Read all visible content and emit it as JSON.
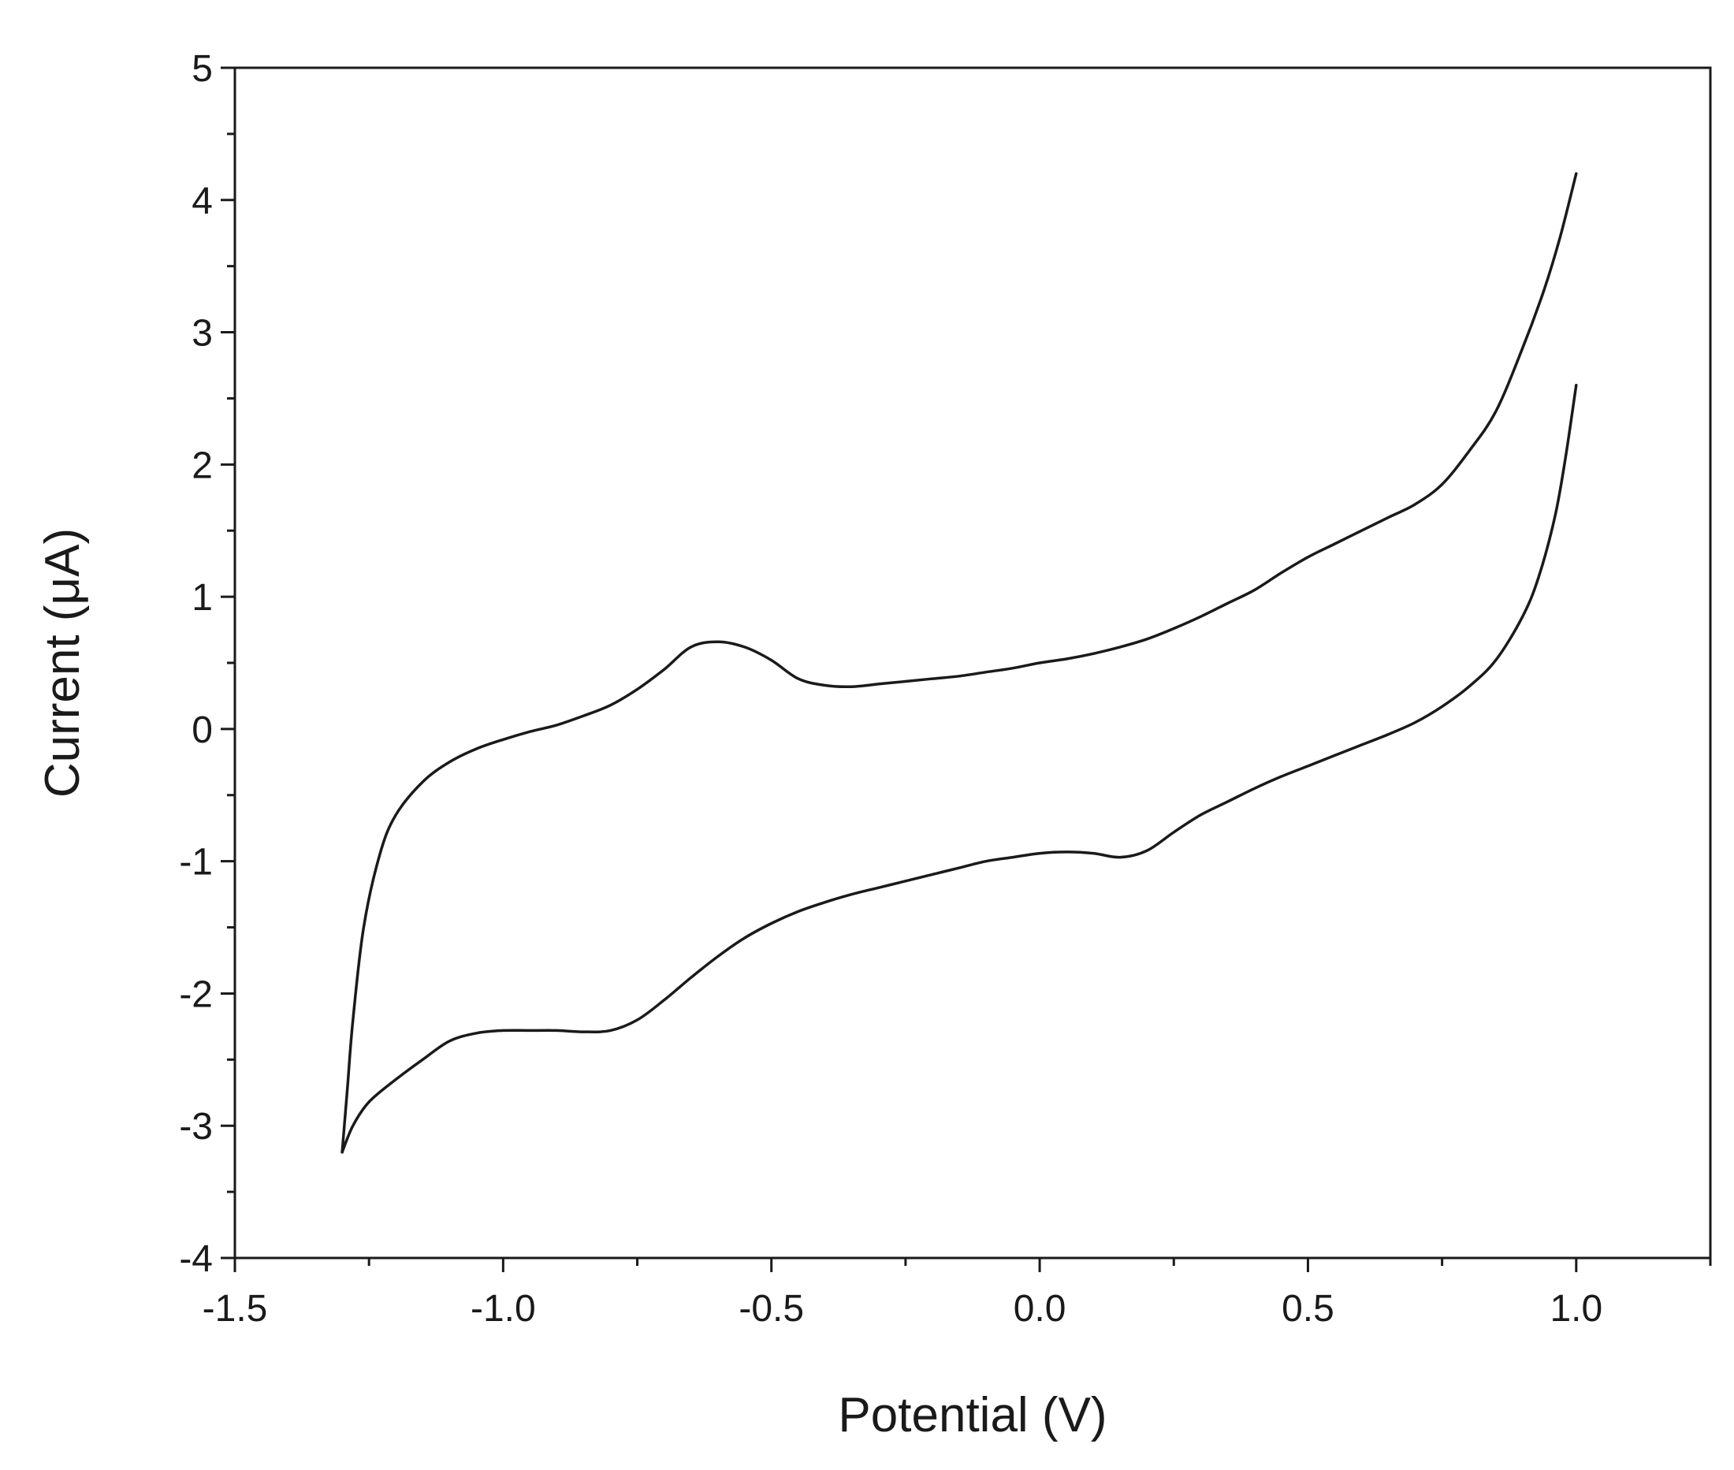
{
  "chart_data": {
    "type": "line",
    "title": "",
    "xlabel": "Potential (V)",
    "ylabel": "Current (μA)",
    "xlim": [
      -1.5,
      1.25
    ],
    "ylim": [
      -4,
      5
    ],
    "xticks": [
      -1.5,
      -1.0,
      -0.5,
      0.0,
      0.5,
      1.0
    ],
    "xtick_labels": [
      "-1.5",
      "-1.0",
      "-0.5",
      "0.0",
      "0.5",
      "1.0"
    ],
    "yticks": [
      -4,
      -3,
      -2,
      -1,
      0,
      1,
      2,
      3,
      4,
      5
    ],
    "ytick_labels": [
      "-4",
      "-3",
      "-2",
      "-1",
      "0",
      "1",
      "2",
      "3",
      "4",
      "5"
    ],
    "grid": false,
    "legend": false,
    "line_color": "#1a1a1a",
    "series": [
      {
        "x": [
          1.0,
          0.97,
          0.94,
          0.9,
          0.85,
          0.8,
          0.75,
          0.7,
          0.65,
          0.6,
          0.55,
          0.5,
          0.45,
          0.4,
          0.35,
          0.3,
          0.25,
          0.2,
          0.15,
          0.1,
          0.05,
          0.0,
          -0.05,
          -0.1,
          -0.15,
          -0.2,
          -0.25,
          -0.3,
          -0.35,
          -0.4,
          -0.45,
          -0.5,
          -0.55,
          -0.6,
          -0.65,
          -0.7,
          -0.75,
          -0.8,
          -0.85,
          -0.9,
          -0.95,
          -1.0,
          -1.05,
          -1.1,
          -1.15,
          -1.2,
          -1.23,
          -1.26,
          -1.28,
          -1.29,
          -1.3
        ],
        "y": [
          4.2,
          3.72,
          3.32,
          2.88,
          2.4,
          2.1,
          1.85,
          1.7,
          1.6,
          1.5,
          1.4,
          1.3,
          1.18,
          1.05,
          0.95,
          0.85,
          0.76,
          0.68,
          0.62,
          0.57,
          0.53,
          0.5,
          0.46,
          0.43,
          0.4,
          0.38,
          0.36,
          0.34,
          0.32,
          0.33,
          0.38,
          0.52,
          0.62,
          0.66,
          0.62,
          0.45,
          0.3,
          0.18,
          0.1,
          0.03,
          -0.02,
          -0.08,
          -0.15,
          -0.25,
          -0.4,
          -0.65,
          -0.95,
          -1.5,
          -2.2,
          -2.7,
          -3.2
        ]
      },
      {
        "x": [
          -1.3,
          -1.28,
          -1.25,
          -1.2,
          -1.15,
          -1.1,
          -1.05,
          -1.0,
          -0.95,
          -0.9,
          -0.85,
          -0.8,
          -0.75,
          -0.7,
          -0.65,
          -0.6,
          -0.55,
          -0.5,
          -0.45,
          -0.4,
          -0.35,
          -0.3,
          -0.25,
          -0.2,
          -0.15,
          -0.1,
          -0.05,
          0.0,
          0.05,
          0.1,
          0.15,
          0.2,
          0.25,
          0.3,
          0.35,
          0.4,
          0.45,
          0.5,
          0.55,
          0.6,
          0.65,
          0.7,
          0.75,
          0.8,
          0.85,
          0.9,
          0.93,
          0.96,
          0.98,
          1.0
        ],
        "y": [
          -3.2,
          -3.0,
          -2.82,
          -2.65,
          -2.5,
          -2.36,
          -2.3,
          -2.28,
          -2.28,
          -2.28,
          -2.29,
          -2.28,
          -2.2,
          -2.05,
          -1.88,
          -1.72,
          -1.58,
          -1.47,
          -1.38,
          -1.31,
          -1.25,
          -1.2,
          -1.15,
          -1.1,
          -1.05,
          -1.0,
          -0.97,
          -0.94,
          -0.93,
          -0.94,
          -0.97,
          -0.92,
          -0.78,
          -0.65,
          -0.55,
          -0.45,
          -0.36,
          -0.28,
          -0.2,
          -0.12,
          -0.04,
          0.05,
          0.17,
          0.32,
          0.52,
          0.85,
          1.15,
          1.6,
          2.05,
          2.6
        ]
      }
    ]
  }
}
